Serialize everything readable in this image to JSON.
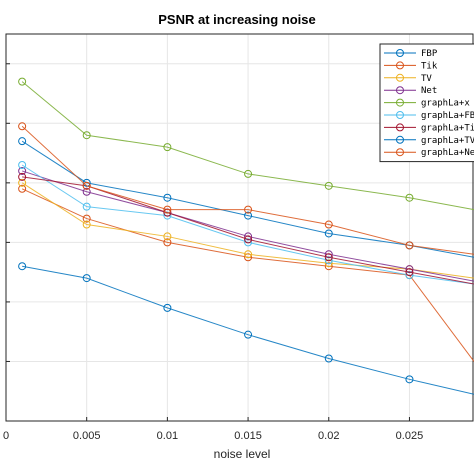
{
  "chart_data": {
    "type": "line",
    "title": "PSNR at increasing noise",
    "xlabel": "noise level",
    "ylabel": "",
    "xlim": [
      0,
      0.029
    ],
    "ylim": [
      0,
      6.5
    ],
    "x": [
      0.001,
      0.005,
      0.01,
      0.015,
      0.02,
      0.025,
      0.029
    ],
    "xticks": [
      0,
      0.005,
      0.01,
      0.015,
      0.02,
      0.025
    ],
    "xtick_labels": [
      "0",
      "0.005",
      "0.01",
      "0.015",
      "0.02",
      "0.025"
    ],
    "grid": true,
    "legend_position": "top-right",
    "series": [
      {
        "name": "FBP",
        "color": "#0072BD",
        "values": [
          2.6,
          2.4,
          1.9,
          1.45,
          1.05,
          0.7,
          0.45
        ]
      },
      {
        "name": "Tik",
        "color": "#D95319",
        "values": [
          3.9,
          3.4,
          3.0,
          2.75,
          2.6,
          2.45,
          1.0
        ]
      },
      {
        "name": "TV",
        "color": "#EDB120",
        "values": [
          4.0,
          3.3,
          3.1,
          2.8,
          2.65,
          2.55,
          2.4
        ]
      },
      {
        "name": "Net",
        "color": "#7E2F8E",
        "values": [
          4.2,
          3.85,
          3.5,
          3.1,
          2.8,
          2.55,
          2.35
        ]
      },
      {
        "name": "graphLa+x",
        "color": "#77AC30",
        "values": [
          5.7,
          4.8,
          4.6,
          4.15,
          3.95,
          3.75,
          3.55
        ]
      },
      {
        "name": "graphLa+FB",
        "color": "#4DBEEE",
        "values": [
          4.3,
          3.6,
          3.45,
          3.0,
          2.7,
          2.45,
          2.3
        ]
      },
      {
        "name": "graphLa+Ti",
        "color": "#A2142F",
        "values": [
          4.1,
          3.95,
          3.5,
          3.05,
          2.75,
          2.5,
          2.3
        ]
      },
      {
        "name": "graphLa+TV",
        "color": "#0072BD",
        "values": [
          4.7,
          4.0,
          3.75,
          3.45,
          3.15,
          2.95,
          2.75
        ]
      },
      {
        "name": "graphLa+Ne",
        "color": "#D95319",
        "values": [
          4.95,
          3.95,
          3.55,
          3.55,
          3.3,
          2.95,
          2.8
        ]
      }
    ]
  }
}
